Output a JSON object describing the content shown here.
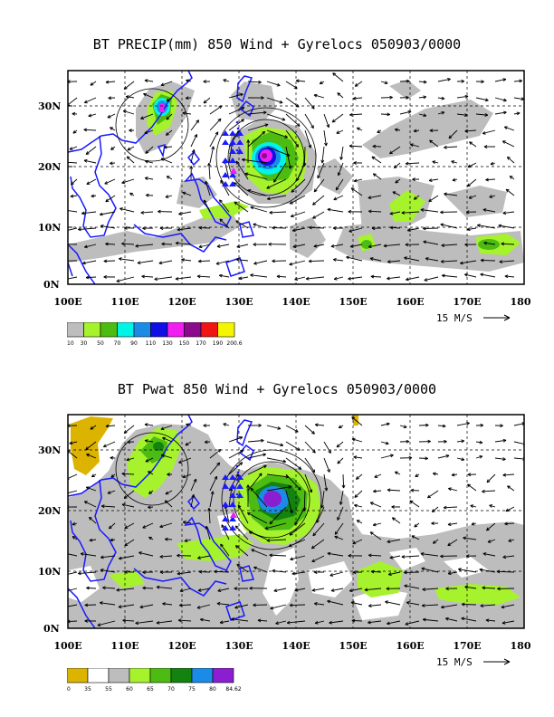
{
  "panels": [
    {
      "title": "BT PRECIP(mm) 850 Wind + Gyrelocs 050903/0000",
      "lat_ticks": [
        "30N",
        "20N",
        "10N",
        "0N"
      ],
      "lon_ticks": [
        "100E",
        "110E",
        "120E",
        "130E",
        "140E",
        "150E",
        "160E",
        "170E",
        "180"
      ],
      "scale_label": "15 M/S",
      "colorbar": {
        "labels": [
          "10",
          "30",
          "50",
          "70",
          "90",
          "110",
          "130",
          "150",
          "170",
          "190",
          "200.6"
        ],
        "colors": [
          "#bdbdbd",
          "#a6f22d",
          "#4cbc12",
          "#00f5e6",
          "#1a8ce8",
          "#1010e6",
          "#f01ef0",
          "#8c0a8c",
          "#f01414",
          "#f5f500"
        ]
      }
    },
    {
      "title": "BT Pwat 850 Wind + Gyrelocs 050903/0000",
      "lat_ticks": [
        "30N",
        "20N",
        "10N",
        "0N"
      ],
      "lon_ticks": [
        "100E",
        "110E",
        "120E",
        "130E",
        "140E",
        "150E",
        "160E",
        "170E",
        "180"
      ],
      "scale_label": "15 M/S",
      "colorbar": {
        "labels": [
          "0",
          "35",
          "55",
          "60",
          "65",
          "70",
          "75",
          "80",
          "84.62"
        ],
        "colors": [
          "#dcb400",
          "#ffffff",
          "#bdbdbd",
          "#a6f22d",
          "#4cbc12",
          "#13820f",
          "#1a8ce8",
          "#8c1ed2"
        ]
      }
    }
  ]
}
